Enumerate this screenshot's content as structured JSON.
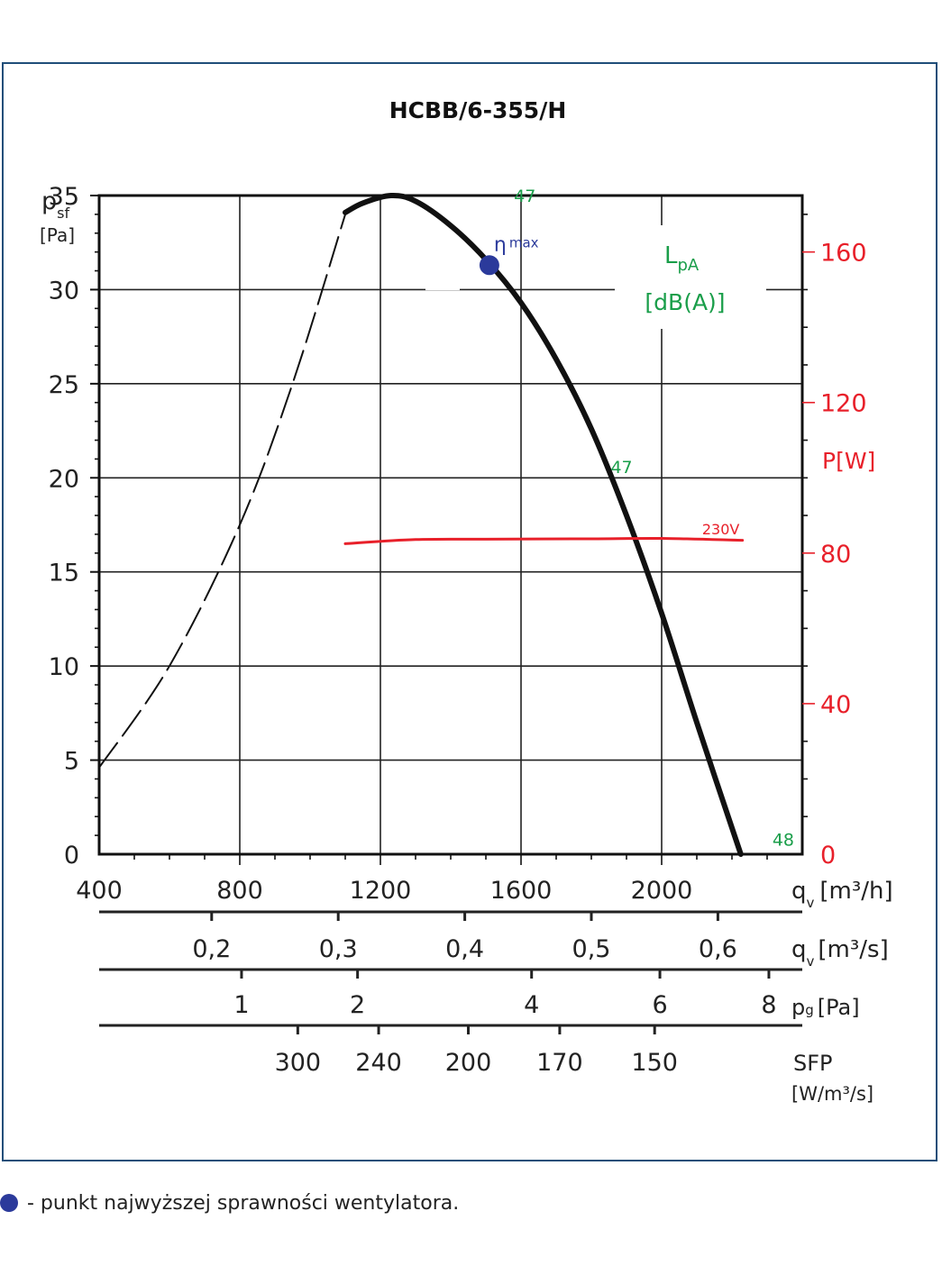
{
  "chart_data": {
    "type": "line",
    "title": "HCBB/6-355/H",
    "y_left": {
      "label_main": "p",
      "label_sub": "sf",
      "unit": "[Pa]",
      "range": [
        0,
        35
      ],
      "ticks": [
        0,
        5,
        10,
        15,
        20,
        25,
        30,
        35
      ]
    },
    "y_right": {
      "label": "P[W]",
      "range": [
        0,
        175
      ],
      "ticks": [
        0,
        40,
        80,
        120,
        160
      ],
      "color": "#e8202a"
    },
    "x": {
      "label_main": "q",
      "label_sub": "v",
      "unit": "[m³/h]",
      "range": [
        400,
        2400
      ],
      "ticks": [
        400,
        800,
        1200,
        1600,
        2000
      ]
    },
    "secondary_scales": [
      {
        "id": "qv_m3s",
        "label_main": "q",
        "label_sub": "v",
        "unit": "[m³/s]",
        "ticks": [
          {
            "label": "0,2",
            "x": 720
          },
          {
            "label": "0,3",
            "x": 1080
          },
          {
            "label": "0,4",
            "x": 1440
          },
          {
            "label": "0,5",
            "x": 1800
          },
          {
            "label": "0,6",
            "x": 2160
          }
        ]
      },
      {
        "id": "pg",
        "label_main": "p",
        "label_sub": "g",
        "unit": "[Pa]",
        "ticks": [
          {
            "label": "1",
            "x": 805
          },
          {
            "label": "2",
            "x": 1135
          },
          {
            "label": "4",
            "x": 1630
          },
          {
            "label": "6",
            "x": 1995
          },
          {
            "label": "8",
            "x": 2305
          }
        ]
      },
      {
        "id": "sfp",
        "label_main": "SFP",
        "unit": "[W/m³/s]",
        "ticks": [
          {
            "label": "300",
            "x": 965
          },
          {
            "label": "240",
            "x": 1195
          },
          {
            "label": "200",
            "x": 1450
          },
          {
            "label": "170",
            "x": 1710
          },
          {
            "label": "150",
            "x": 1980
          }
        ]
      }
    ],
    "series": [
      {
        "id": "pressure_dashed",
        "style": "dashed",
        "color": "#111111",
        "axis": "left",
        "points": [
          [
            400,
            4.6
          ],
          [
            600,
            10.0
          ],
          [
            800,
            17.5
          ],
          [
            950,
            25.0
          ],
          [
            1100,
            34.0
          ]
        ]
      },
      {
        "id": "pressure_curve",
        "style": "solid",
        "color": "#111111",
        "axis": "left",
        "points": [
          [
            1100,
            34.1
          ],
          [
            1150,
            34.6
          ],
          [
            1230,
            35.0
          ],
          [
            1300,
            34.7
          ],
          [
            1400,
            33.4
          ],
          [
            1500,
            31.6
          ],
          [
            1600,
            29.3
          ],
          [
            1700,
            26.3
          ],
          [
            1800,
            22.6
          ],
          [
            1900,
            18.0
          ],
          [
            2000,
            12.8
          ],
          [
            2100,
            7.0
          ],
          [
            2225,
            0.0
          ]
        ]
      },
      {
        "id": "power_230V",
        "name": "230V",
        "style": "solid",
        "color": "#e8202a",
        "axis": "right",
        "points": [
          [
            1100,
            82.5
          ],
          [
            1300,
            83.6
          ],
          [
            1500,
            83.7
          ],
          [
            1800,
            83.8
          ],
          [
            2000,
            83.9
          ],
          [
            2230,
            83.4
          ]
        ]
      }
    ],
    "eta_max": {
      "label": "η",
      "label_sub": "max",
      "x": 1510,
      "y": 31.3,
      "color": "#2b3a9b"
    },
    "lpa_legend": {
      "line1_main": "L",
      "line1_sub": "pA",
      "line2": "[dB(A)]",
      "color": "#1a9e4a"
    },
    "lpa_annotations": [
      {
        "text": "47",
        "x": 1580,
        "y": 35.0
      },
      {
        "text": "47",
        "x": 1855,
        "y": 20.6
      },
      {
        "text": "48",
        "x": 2315,
        "y": 0.8
      }
    ],
    "series_label": {
      "text": "230V",
      "x": 2115,
      "y": 83.6
    },
    "grid": true
  },
  "footnote": {
    "text": "- punkt najwyższej sprawności wentylatora."
  }
}
